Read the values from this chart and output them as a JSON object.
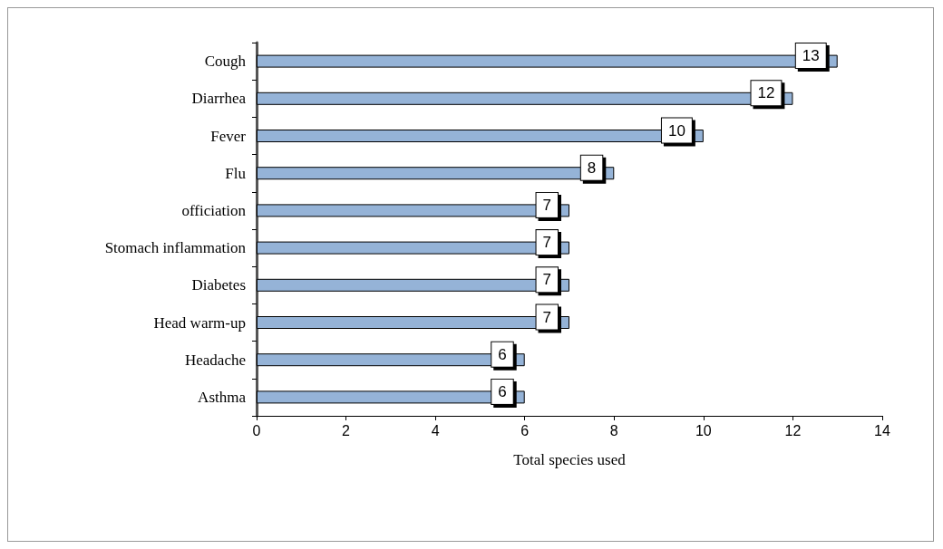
{
  "chart_data": {
    "type": "bar",
    "orientation": "horizontal",
    "xlabel": "Total species used",
    "categories": [
      "Cough",
      "Diarrhea",
      "Fever",
      "Flu",
      "officiation",
      "Stomach inflammation",
      "Diabetes",
      "Head warm-up",
      "Headache",
      "Asthma"
    ],
    "values": [
      13,
      12,
      10,
      8,
      7,
      7,
      7,
      7,
      6,
      6
    ],
    "color": "#95b3d7",
    "xlim": [
      0,
      14
    ],
    "xticks": [
      0,
      2,
      4,
      6,
      8,
      10,
      12,
      14
    ],
    "data_labels": true,
    "grid": false
  }
}
